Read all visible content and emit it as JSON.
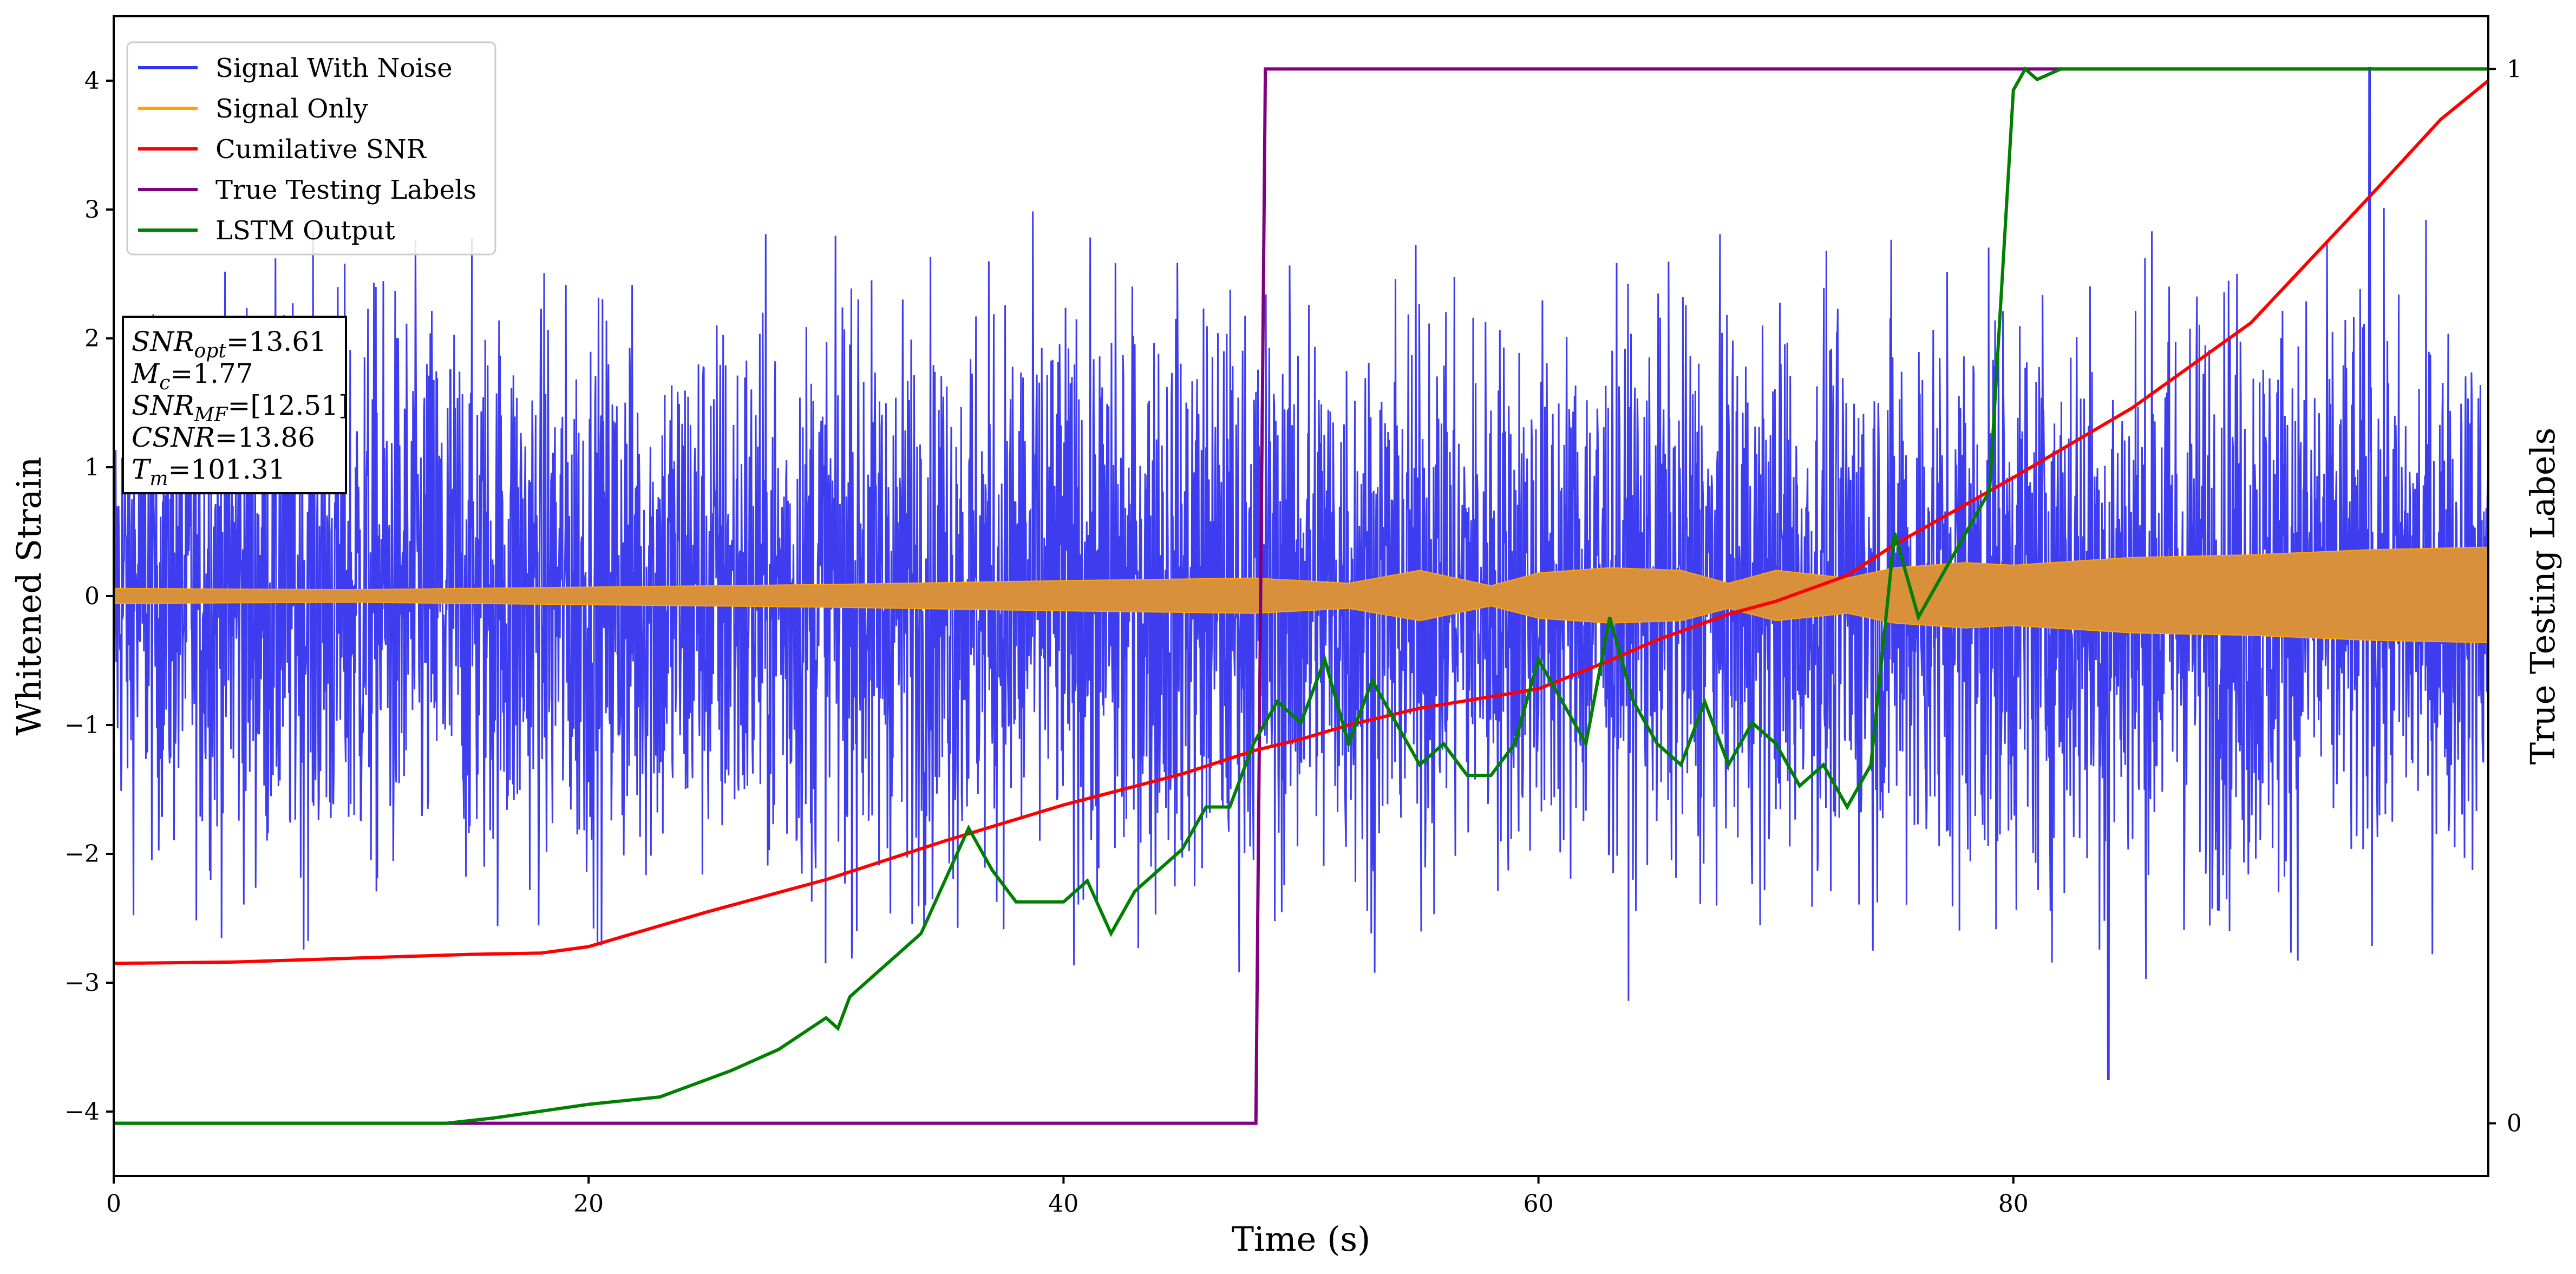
{
  "chart_data": {
    "type": "line",
    "xlabel": "Time (s)",
    "ylabel": "Whitened Strain",
    "y2label": "True Testing Labels",
    "xlim": [
      0,
      100
    ],
    "ylim": [
      -4.5,
      4.5
    ],
    "y2lim": [
      -0.05,
      1.05
    ],
    "xticks": [
      0,
      20,
      40,
      60,
      80
    ],
    "yticks": [
      -4,
      -3,
      -2,
      -1,
      0,
      1,
      2,
      3,
      4
    ],
    "y2ticks": [
      0,
      1
    ],
    "grid": false,
    "legend_placement": "top-left",
    "series": [
      {
        "name": "Signal With Noise",
        "axis": "left",
        "color": "#3333ee",
        "description_points": {
          "x": [
            0,
            10,
            20,
            30,
            40,
            50,
            60,
            70,
            80,
            90,
            100
          ],
          "envelope_high": [
            2.3,
            3.1,
            2.9,
            2.8,
            3.2,
            3.0,
            2.6,
            2.9,
            3.0,
            3.3,
            2.9
          ],
          "envelope_low": [
            -2.9,
            -3.3,
            -3.2,
            -3.3,
            -3.0,
            -3.3,
            -3.2,
            -3.1,
            -3.4,
            -3.4,
            -2.6
          ],
          "peak_max": {
            "x": 95,
            "y": 4.1
          },
          "peak_min": {
            "x": 84,
            "y": -3.75
          }
        }
      },
      {
        "name": "Signal Only",
        "axis": "left",
        "color": "#ffa500",
        "amplitude": {
          "x": [
            0,
            10,
            20,
            30,
            40,
            48,
            52,
            55,
            58,
            60,
            63,
            66,
            68,
            70,
            73,
            75,
            78,
            80,
            85,
            90,
            95,
            100
          ],
          "y": [
            0.06,
            0.05,
            0.07,
            0.09,
            0.12,
            0.14,
            0.1,
            0.2,
            0.08,
            0.18,
            0.22,
            0.2,
            0.1,
            0.2,
            0.14,
            0.22,
            0.26,
            0.24,
            0.3,
            0.32,
            0.36,
            0.38
          ]
        }
      },
      {
        "name": "Cumilative SNR",
        "axis": "left",
        "color": "#ff0000",
        "x": [
          0,
          5,
          10,
          15,
          18,
          20,
          25,
          30,
          35,
          40,
          45,
          48,
          50,
          52,
          55,
          60,
          63,
          65,
          68,
          70,
          73,
          75,
          80,
          85,
          90,
          95,
          98,
          100
        ],
        "y": [
          -2.85,
          -2.84,
          -2.81,
          -2.78,
          -2.77,
          -2.72,
          -2.45,
          -2.2,
          -1.9,
          -1.62,
          -1.38,
          -1.2,
          -1.11,
          -1.0,
          -0.87,
          -0.72,
          -0.5,
          -0.34,
          -0.14,
          -0.04,
          0.16,
          0.4,
          0.92,
          1.46,
          2.12,
          3.1,
          3.7,
          4.0
        ]
      },
      {
        "name": "True Testing Labels",
        "axis": "right",
        "color": "#800080",
        "x": [
          0,
          48.1,
          48.5,
          100
        ],
        "y": [
          0,
          0,
          1,
          1
        ]
      },
      {
        "name": "LSTM Output",
        "axis": "right",
        "color": "#008000",
        "x": [
          0,
          14,
          16,
          20,
          23,
          26,
          28,
          30,
          30.5,
          31,
          32,
          33,
          34,
          35,
          36,
          37,
          38,
          40,
          41,
          42,
          43,
          44,
          45,
          46,
          47,
          48,
          49,
          50,
          51,
          52,
          53,
          54,
          55,
          56,
          57,
          58,
          59,
          60,
          61,
          62,
          63,
          64,
          65,
          66,
          67,
          68,
          69,
          70,
          71,
          72,
          73,
          74,
          75,
          76,
          77,
          78,
          79,
          80,
          80.5,
          81,
          82,
          85,
          100
        ],
        "y": [
          0,
          0,
          0.005,
          0.018,
          0.025,
          0.05,
          0.07,
          0.1,
          0.09,
          0.12,
          0.14,
          0.16,
          0.18,
          0.23,
          0.28,
          0.24,
          0.21,
          0.21,
          0.23,
          0.18,
          0.22,
          0.24,
          0.26,
          0.3,
          0.3,
          0.36,
          0.4,
          0.38,
          0.44,
          0.36,
          0.42,
          0.38,
          0.34,
          0.36,
          0.33,
          0.33,
          0.36,
          0.44,
          0.4,
          0.36,
          0.48,
          0.4,
          0.36,
          0.34,
          0.4,
          0.34,
          0.38,
          0.36,
          0.32,
          0.34,
          0.3,
          0.34,
          0.56,
          0.48,
          0.52,
          0.56,
          0.6,
          0.98,
          1.0,
          0.99,
          1.0,
          1.0,
          1.0
        ]
      }
    ],
    "annotations": [
      {
        "base": "SNR",
        "sub": "opt",
        "value": "=13.61"
      },
      {
        "base": "M",
        "sub": "c",
        "value": "=1.77"
      },
      {
        "base": "SNR",
        "sub": "MF",
        "value": "=[12.51]"
      },
      {
        "base": "CSNR",
        "sub": "",
        "value": "=13.86"
      },
      {
        "base": "T",
        "sub": "m",
        "value": "=101.31"
      }
    ]
  }
}
